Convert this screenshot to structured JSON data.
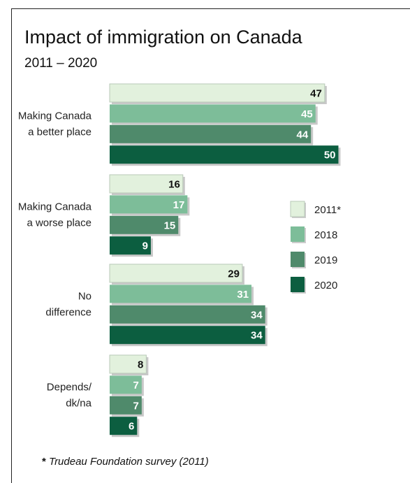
{
  "title": "Impact of immigration on Canada",
  "subtitle": "2011 – 2020",
  "footnote": {
    "star": "*",
    "text": "Trudeau Foundation survey (2011)"
  },
  "chart_data": {
    "type": "bar",
    "orientation": "horizontal",
    "categories": [
      {
        "lines": [
          "Making Canada",
          "a better place"
        ]
      },
      {
        "lines": [
          "Making Canada",
          "a worse place"
        ]
      },
      {
        "lines": [
          "No",
          "difference"
        ]
      },
      {
        "lines": [
          "Depends/",
          "dk/na"
        ]
      }
    ],
    "series": [
      {
        "name": "2011*",
        "color": "#e2f1dd",
        "label_color": "#111111",
        "values": [
          47,
          16,
          29,
          8
        ]
      },
      {
        "name": "2018",
        "color": "#7dbd99",
        "label_color": "#ffffff",
        "values": [
          45,
          17,
          31,
          7
        ]
      },
      {
        "name": "2019",
        "color": "#4f8a6b",
        "label_color": "#ffffff",
        "values": [
          44,
          15,
          34,
          7
        ]
      },
      {
        "name": "2020",
        "color": "#0c5e40",
        "label_color": "#ffffff",
        "values": [
          50,
          9,
          34,
          6
        ]
      }
    ],
    "grid": false,
    "legend_position": "right"
  }
}
